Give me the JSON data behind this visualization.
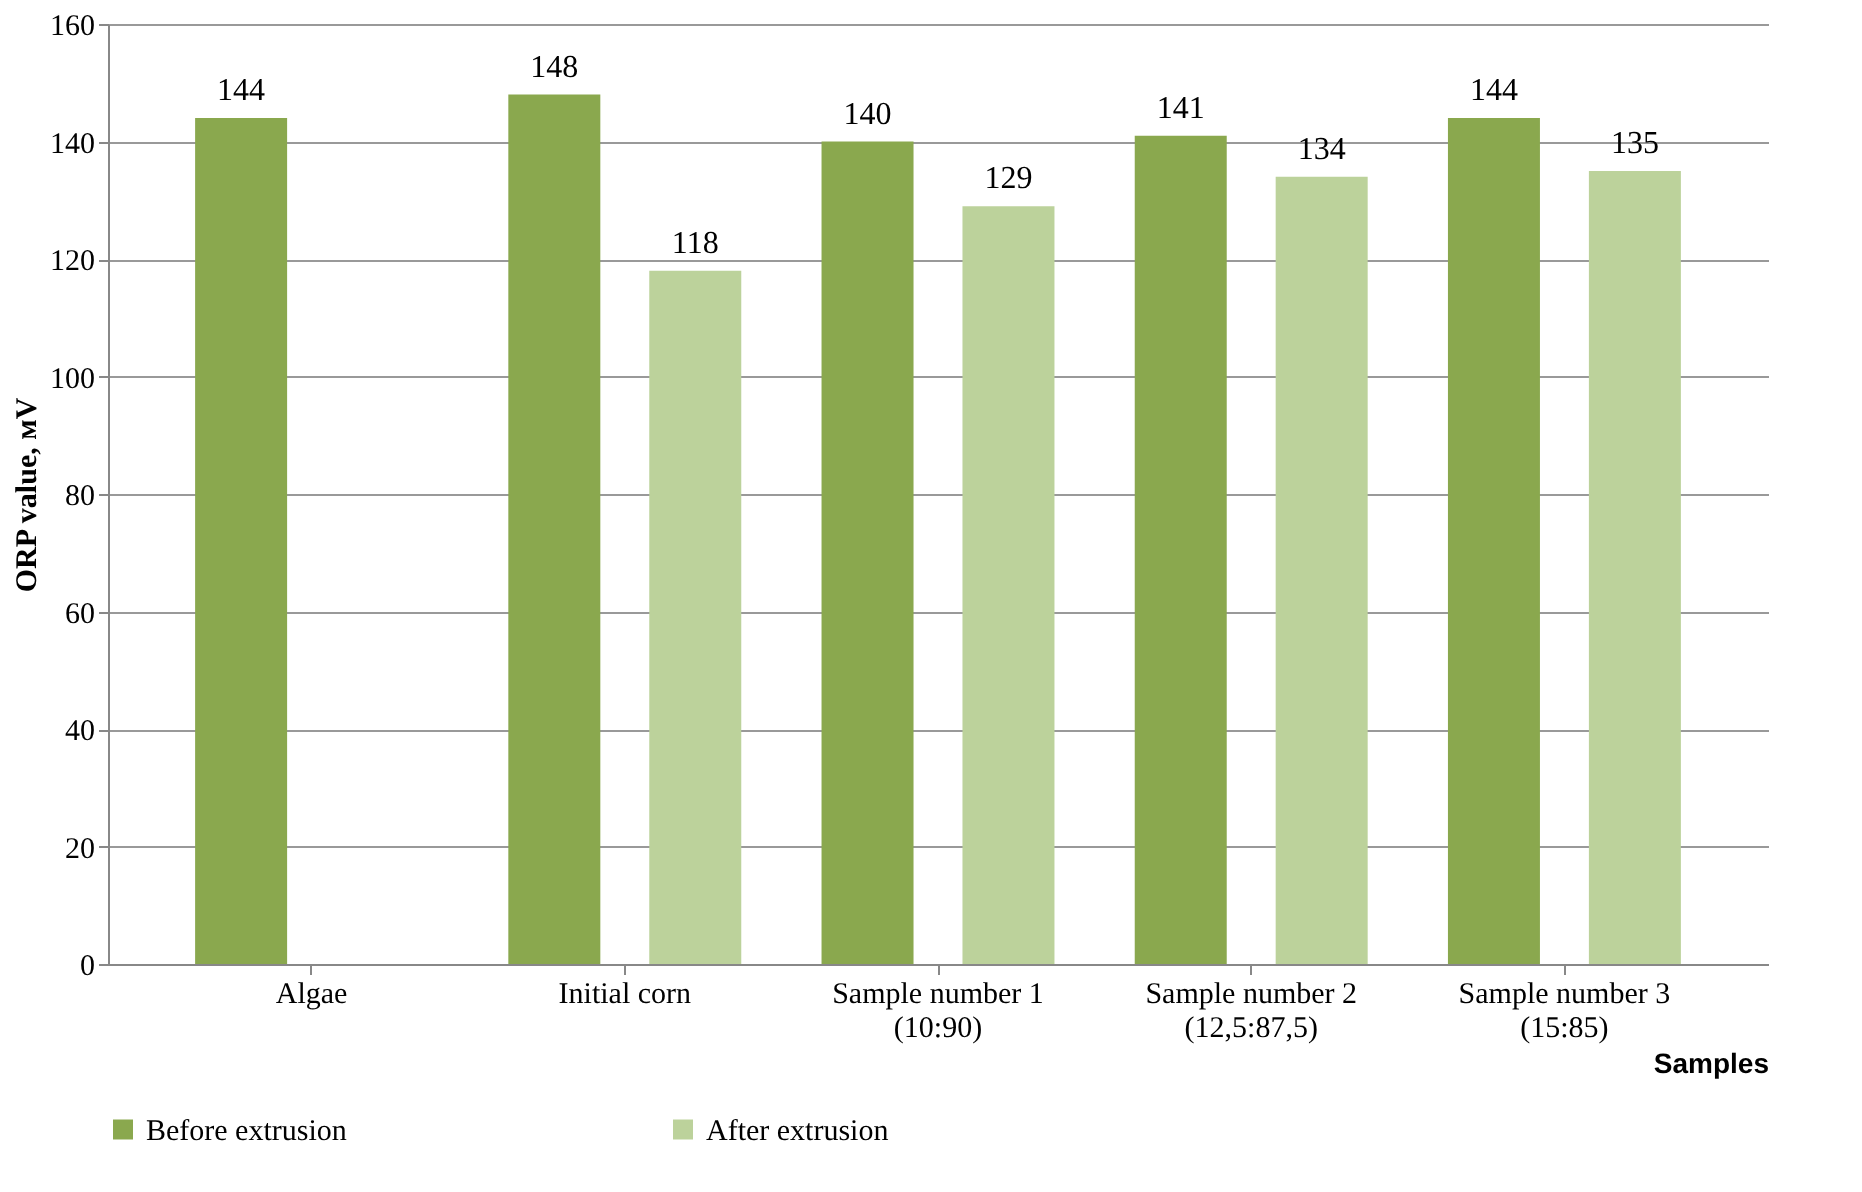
{
  "chart_data": {
    "type": "bar",
    "xlabel": "Samples",
    "ylabel": "ORP value, мV",
    "categories": [
      "Algae",
      "Initial corn",
      "Sample number 1\n(10:90)",
      "Sample number 2\n(12,5:87,5)",
      "Sample number 3\n(15:85)"
    ],
    "series": [
      {
        "name": "Before extrusion",
        "color": "#8aa84e",
        "values": [
          144,
          148,
          140,
          141,
          144
        ]
      },
      {
        "name": "After extrusion",
        "color": "#bcd29b",
        "values": [
          null,
          118,
          129,
          134,
          135
        ]
      }
    ],
    "ylim": [
      0,
      160
    ],
    "yticks": [
      0,
      20,
      40,
      60,
      80,
      100,
      120,
      140,
      160
    ],
    "grid": "y",
    "legend": "bottom",
    "data_labels": true
  }
}
